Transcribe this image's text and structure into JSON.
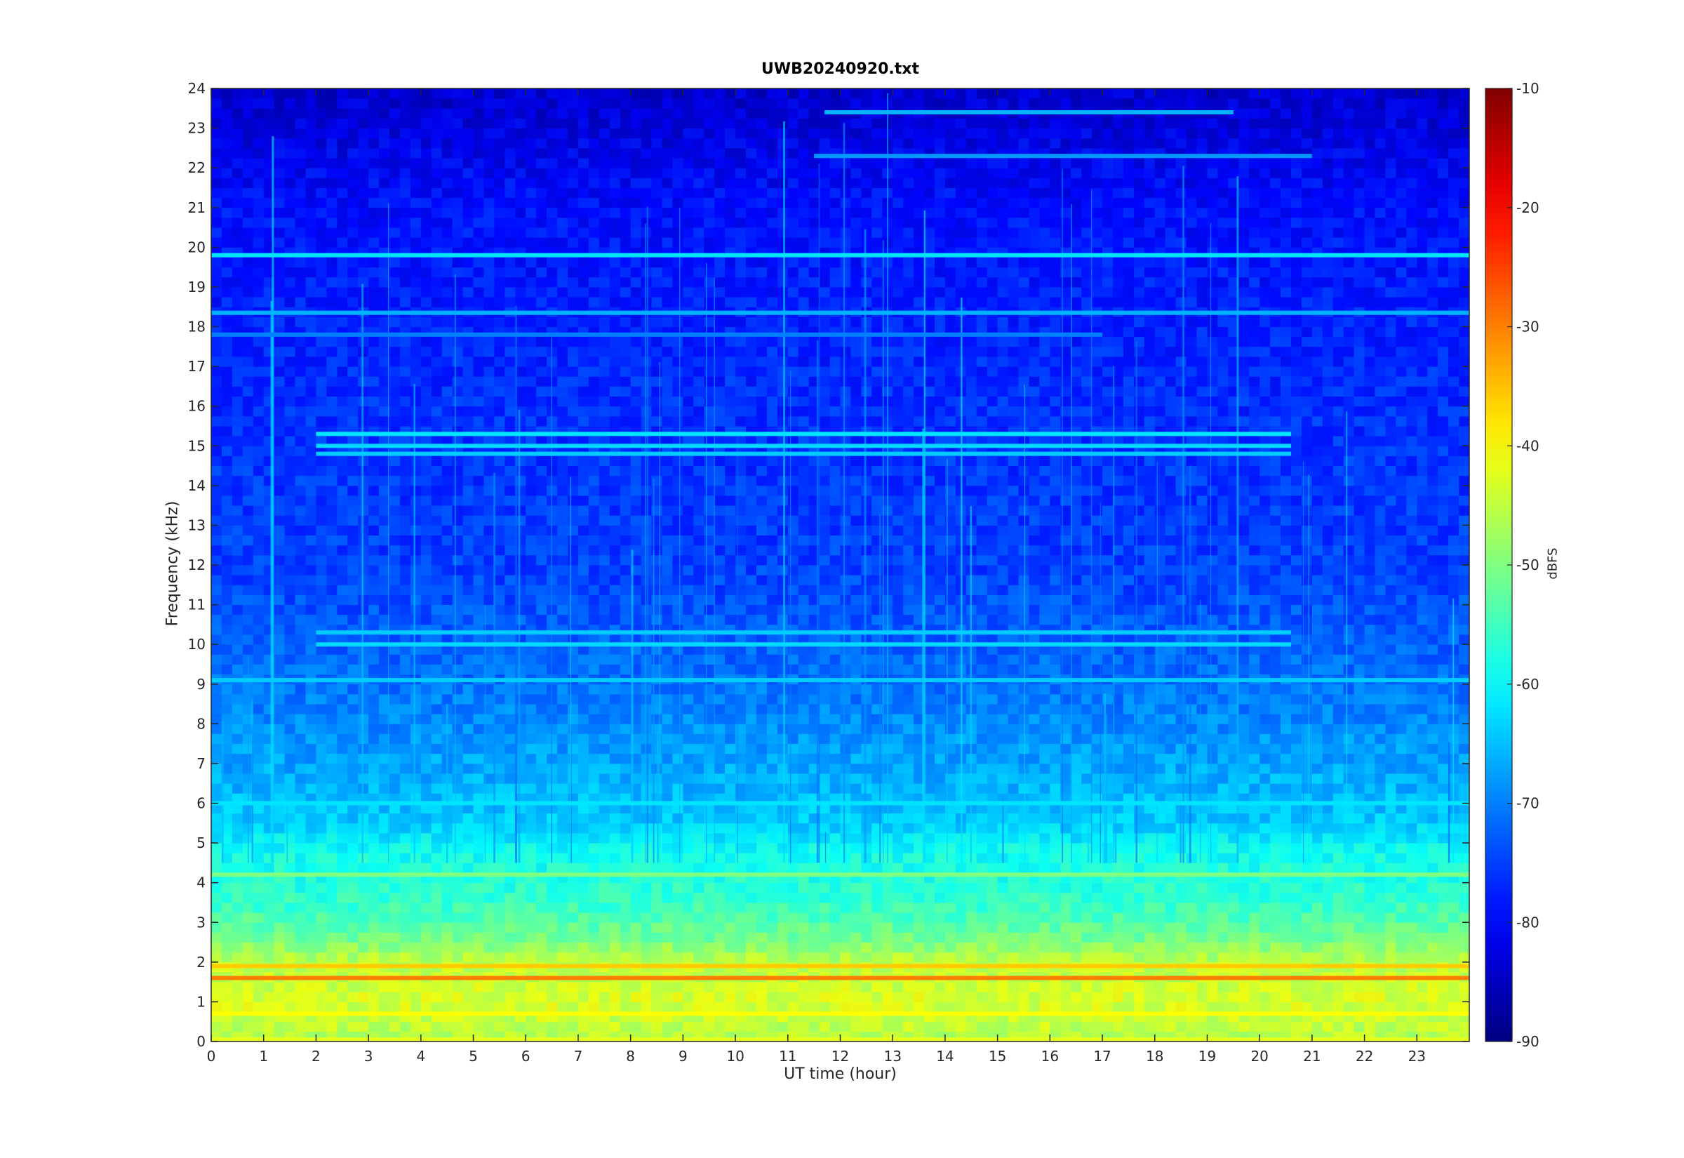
{
  "chart_data": {
    "type": "heatmap",
    "title": "UWB20240920.txt",
    "xlabel": "UT time (hour)",
    "ylabel": "Frequency (kHz)",
    "xlim": [
      0,
      24
    ],
    "ylim": [
      0,
      24
    ],
    "x_ticks": [
      "0",
      "1",
      "2",
      "3",
      "4",
      "5",
      "6",
      "7",
      "8",
      "9",
      "10",
      "11",
      "12",
      "13",
      "14",
      "15",
      "16",
      "17",
      "18",
      "19",
      "20",
      "21",
      "22",
      "23"
    ],
    "y_ticks": [
      "0",
      "1",
      "2",
      "3",
      "4",
      "5",
      "6",
      "7",
      "8",
      "9",
      "10",
      "11",
      "12",
      "13",
      "14",
      "15",
      "16",
      "17",
      "18",
      "19",
      "20",
      "21",
      "22",
      "23",
      "24"
    ],
    "colorbar": {
      "label": "dBFS",
      "colormap": "jet",
      "clim": [
        -90,
        -10
      ],
      "ticks": [
        "-90",
        "-80",
        "-70",
        "-60",
        "-50",
        "-40",
        "-30",
        "-20",
        "-10"
      ]
    },
    "background_level_by_frequency_khz": [
      {
        "f": 0.0,
        "db": -46
      },
      {
        "f": 1.0,
        "db": -43
      },
      {
        "f": 2.0,
        "db": -45
      },
      {
        "f": 2.6,
        "db": -51
      },
      {
        "f": 3.5,
        "db": -56
      },
      {
        "f": 4.8,
        "db": -59
      },
      {
        "f": 5.5,
        "db": -64
      },
      {
        "f": 7.0,
        "db": -67
      },
      {
        "f": 9.0,
        "db": -71
      },
      {
        "f": 12.0,
        "db": -75
      },
      {
        "f": 17.0,
        "db": -77
      },
      {
        "f": 21.0,
        "db": -79
      },
      {
        "f": 24.0,
        "db": -84
      }
    ],
    "tonal_lines": [
      {
        "f_khz": 19.8,
        "t_start": 0,
        "t_end": 24,
        "db": -62
      },
      {
        "f_khz": 18.35,
        "t_start": 0,
        "t_end": 24,
        "db": -66
      },
      {
        "f_khz": 17.8,
        "t_start": 0,
        "t_end": 17,
        "db": -70
      },
      {
        "f_khz": 23.4,
        "t_start": 11.7,
        "t_end": 19.5,
        "db": -66
      },
      {
        "f_khz": 22.3,
        "t_start": 11.5,
        "t_end": 21.0,
        "db": -68
      },
      {
        "f_khz": 15.3,
        "t_start": 2.0,
        "t_end": 20.6,
        "db": -62
      },
      {
        "f_khz": 15.0,
        "t_start": 2.0,
        "t_end": 20.6,
        "db": -63
      },
      {
        "f_khz": 14.8,
        "t_start": 2.0,
        "t_end": 20.6,
        "db": -64
      },
      {
        "f_khz": 10.3,
        "t_start": 2.0,
        "t_end": 20.6,
        "db": -64
      },
      {
        "f_khz": 10.0,
        "t_start": 2.0,
        "t_end": 20.6,
        "db": -63
      },
      {
        "f_khz": 9.1,
        "t_start": 0,
        "t_end": 24,
        "db": -64
      },
      {
        "f_khz": 6.0,
        "t_start": 0,
        "t_end": 24,
        "db": -62
      },
      {
        "f_khz": 4.2,
        "t_start": 0,
        "t_end": 24,
        "db": -50
      },
      {
        "f_khz": 1.6,
        "t_start": 0,
        "t_end": 24,
        "db": -30
      },
      {
        "f_khz": 1.9,
        "t_start": 0,
        "t_end": 24,
        "db": -36
      },
      {
        "f_khz": 0.7,
        "t_start": 0,
        "t_end": 24,
        "db": -40
      },
      {
        "f_khz": 0.05,
        "t_start": 0,
        "t_end": 24,
        "db": -42
      }
    ],
    "grid": false,
    "legend": "none"
  },
  "colors": {
    "axis": "#262626",
    "background": "#ffffff"
  }
}
